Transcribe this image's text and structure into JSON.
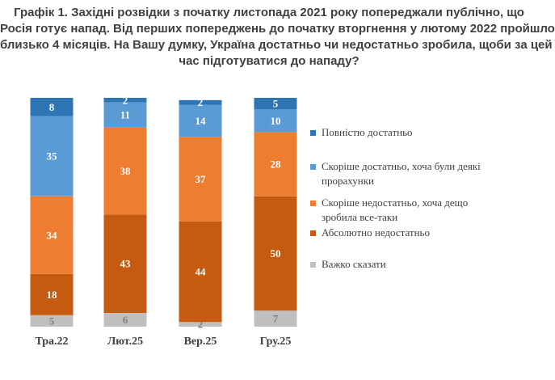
{
  "chart_data": {
    "type": "bar",
    "stacked": true,
    "title_lines": [
      "Графік 1. Західні розвідки з початку листопада 2021 року попереджали публічно, що",
      "Росія готує напад. Від перших попереджень до початку вторгнення у лютому 2022 пройшло",
      "близько 4 місяців. На Вашу думку, Україна достатньо чи недостатньо зробила, щоби за цей",
      "час підготуватися до нападу?"
    ],
    "categories": [
      "Тра.22",
      "Лют.25",
      "Вер.25",
      "Гру.25"
    ],
    "series": [
      {
        "name": "Важко сказати",
        "color": "#bfbfbf",
        "label_color": "#7f7f7f",
        "values": [
          5,
          6,
          2,
          7
        ]
      },
      {
        "name": "Абсолютно недостатньо",
        "color": "#c55a11",
        "label_color": "#ffffff",
        "values": [
          18,
          43,
          44,
          50
        ]
      },
      {
        "name": "Скоріше недостатньо, хоча дещо зробила все-таки",
        "color": "#ed7d31",
        "label_color": "#ffffff",
        "values": [
          34,
          38,
          37,
          28
        ]
      },
      {
        "name": "Скоріше достатньо, хоча були деякі прорахунки",
        "color": "#5b9bd5",
        "label_color": "#ffffff",
        "values": [
          35,
          11,
          14,
          10
        ]
      },
      {
        "name": "Повністю достатньо",
        "color": "#2e75b6",
        "label_color": "#ffffff",
        "values": [
          8,
          2,
          2,
          5
        ]
      }
    ],
    "legend": [
      {
        "lines": [
          "Повністю достатньо"
        ],
        "color": "#2e75b6"
      },
      {
        "lines": [
          "Скоріше достатньо, хоча були деякі",
          "прорахунки"
        ],
        "color": "#5b9bd5"
      },
      {
        "lines": [
          "Скоріше недостатньо, хоча дещо",
          "зробила все-таки"
        ],
        "color": "#ed7d31"
      },
      {
        "lines": [
          "Абсолютно недостатньо"
        ],
        "color": "#c55a11"
      },
      {
        "lines": [
          "Важко сказати"
        ],
        "color": "#bfbfbf"
      }
    ],
    "legend_position": "right",
    "ylim": [
      0,
      100
    ],
    "grid": false
  }
}
